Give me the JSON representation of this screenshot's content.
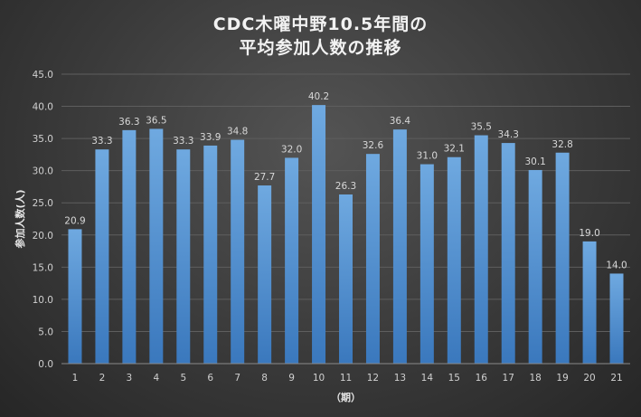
{
  "chart_data": {
    "type": "bar",
    "title_line1": "CDC木曜中野10.5年間の",
    "title_line2": "平均参加人数の推移",
    "xlabel": "（期）",
    "ylabel": "参加人数(人)",
    "categories": [
      "1",
      "2",
      "3",
      "4",
      "5",
      "6",
      "7",
      "8",
      "9",
      "10",
      "11",
      "12",
      "13",
      "14",
      "15",
      "16",
      "17",
      "18",
      "19",
      "20",
      "21"
    ],
    "values": [
      20.9,
      33.3,
      36.3,
      36.5,
      33.3,
      33.9,
      34.8,
      27.7,
      32.0,
      40.2,
      26.3,
      32.6,
      36.4,
      31.0,
      32.1,
      35.5,
      34.3,
      30.1,
      32.8,
      19.0,
      14.0
    ],
    "value_labels": [
      "20.9",
      "33.3",
      "36.3",
      "36.5",
      "33.3",
      "33.9",
      "34.8",
      "27.7",
      "32.0",
      "40.2",
      "26.3",
      "32.6",
      "36.4",
      "31.0",
      "32.1",
      "35.5",
      "34.3",
      "30.1",
      "32.8",
      "19.0",
      "14.0"
    ],
    "yticks": [
      "0.0",
      "5.0",
      "10.0",
      "15.0",
      "20.0",
      "25.0",
      "30.0",
      "35.0",
      "40.0",
      "45.0"
    ],
    "ylim": [
      0,
      45
    ],
    "grid": true,
    "legend": "none",
    "bar_color_top": "#6fa9e0",
    "bar_color_bottom": "#3a78bd"
  }
}
